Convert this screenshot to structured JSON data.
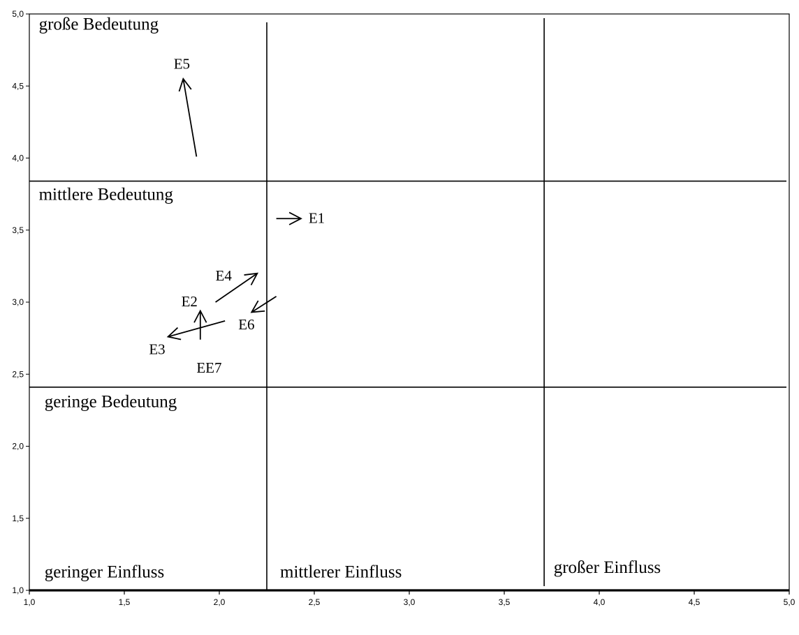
{
  "chart_data": {
    "type": "scatter",
    "title": "",
    "xlabel": "",
    "ylabel": "",
    "xlim": [
      1.0,
      5.0
    ],
    "ylim": [
      1.0,
      5.0
    ],
    "x_ticks": [
      "1,0",
      "1,5",
      "2,0",
      "2,5",
      "3,0",
      "3,5",
      "4,0",
      "4,5",
      "5,0"
    ],
    "y_ticks": [
      "1,0",
      "1,5",
      "2,0",
      "2,5",
      "3,0",
      "3,5",
      "4,0",
      "4,5",
      "5,0"
    ],
    "x_tick_values": [
      1.0,
      1.5,
      2.0,
      2.5,
      3.0,
      3.5,
      4.0,
      4.5,
      5.0
    ],
    "y_tick_values": [
      1.0,
      1.5,
      2.0,
      2.5,
      3.0,
      3.5,
      4.0,
      4.5,
      5.0
    ],
    "grid": false,
    "dividers": {
      "x": [
        2.25,
        3.71
      ],
      "y": [
        2.41,
        3.84
      ]
    },
    "zone_labels": {
      "bedeutung": [
        {
          "text": "große Bedeutung",
          "x": 1.05,
          "y": 4.89
        },
        {
          "text": "mittlere Bedeutung",
          "x": 1.05,
          "y": 3.71
        },
        {
          "text": "geringe Bedeutung",
          "x": 1.08,
          "y": 2.27
        }
      ],
      "einfluss": [
        {
          "text": "geringer Einfluss",
          "x": 1.08,
          "y": 1.09
        },
        {
          "text": "mittlerer Einfluss",
          "x": 2.32,
          "y": 1.09
        },
        {
          "text": "großer Einfluss",
          "x": 3.76,
          "y": 1.12
        }
      ]
    },
    "series": [
      {
        "label": "E1",
        "from": [
          2.3,
          3.58
        ],
        "to": [
          2.43,
          3.58
        ],
        "label_pos": [
          2.47,
          3.55
        ]
      },
      {
        "label": "E2",
        "from": [
          1.9,
          2.74
        ],
        "to": [
          1.9,
          2.94
        ],
        "label_pos": [
          1.8,
          2.97
        ]
      },
      {
        "label": "E3",
        "from": [
          2.03,
          2.87
        ],
        "to": [
          1.73,
          2.76
        ],
        "label_pos": [
          1.63,
          2.64
        ]
      },
      {
        "label": "E4",
        "from": [
          1.98,
          3.0
        ],
        "to": [
          2.2,
          3.2
        ],
        "label_pos": [
          1.98,
          3.15
        ]
      },
      {
        "label": "E5",
        "from": [
          1.88,
          4.01
        ],
        "to": [
          1.81,
          4.55
        ],
        "label_pos": [
          1.76,
          4.62
        ]
      },
      {
        "label": "E6",
        "from": [
          2.3,
          3.04
        ],
        "to": [
          2.17,
          2.93
        ],
        "label_pos": [
          2.1,
          2.81
        ]
      },
      {
        "label": "EE7",
        "from": [
          1.9,
          2.74
        ],
        "to": [
          1.9,
          2.74
        ],
        "label_pos": [
          1.88,
          2.51
        ]
      }
    ]
  }
}
